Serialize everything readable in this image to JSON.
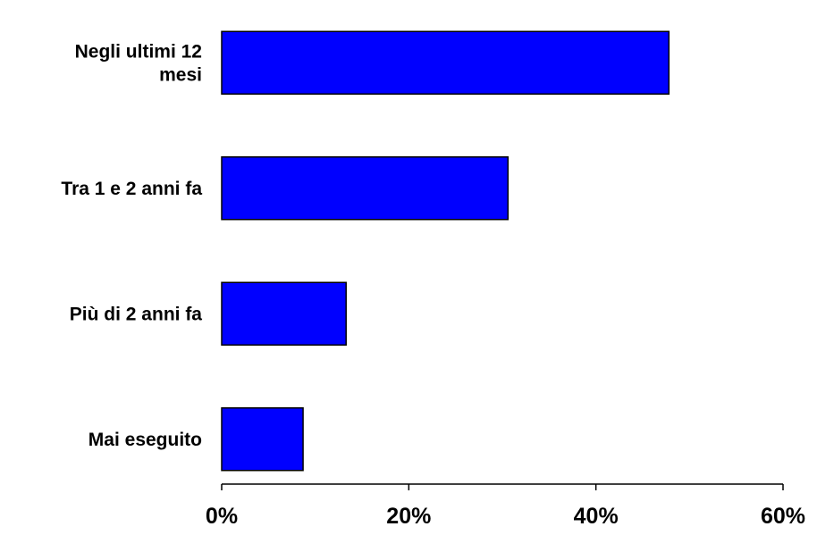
{
  "chart_data": {
    "type": "bar",
    "orientation": "horizontal",
    "categories": [
      "Negli ultimi 12 mesi",
      "Tra 1 e 2 anni fa",
      "Più di 2 anni fa",
      "Mai eseguito"
    ],
    "category_label_lines": [
      [
        "Negli ultimi 12",
        "mesi"
      ],
      [
        "Tra 1 e 2 anni fa"
      ],
      [
        "Più di 2 anni fa"
      ],
      [
        "Mai eseguito"
      ]
    ],
    "values": [
      47.8,
      30.6,
      13.3,
      8.7
    ],
    "xlim": [
      0,
      60
    ],
    "xticks": [
      "0%",
      "20%",
      "40%",
      "60%"
    ],
    "bar_color": "#0000FF",
    "bar_edge_color": "#000000",
    "grid": false,
    "legend": "none"
  }
}
